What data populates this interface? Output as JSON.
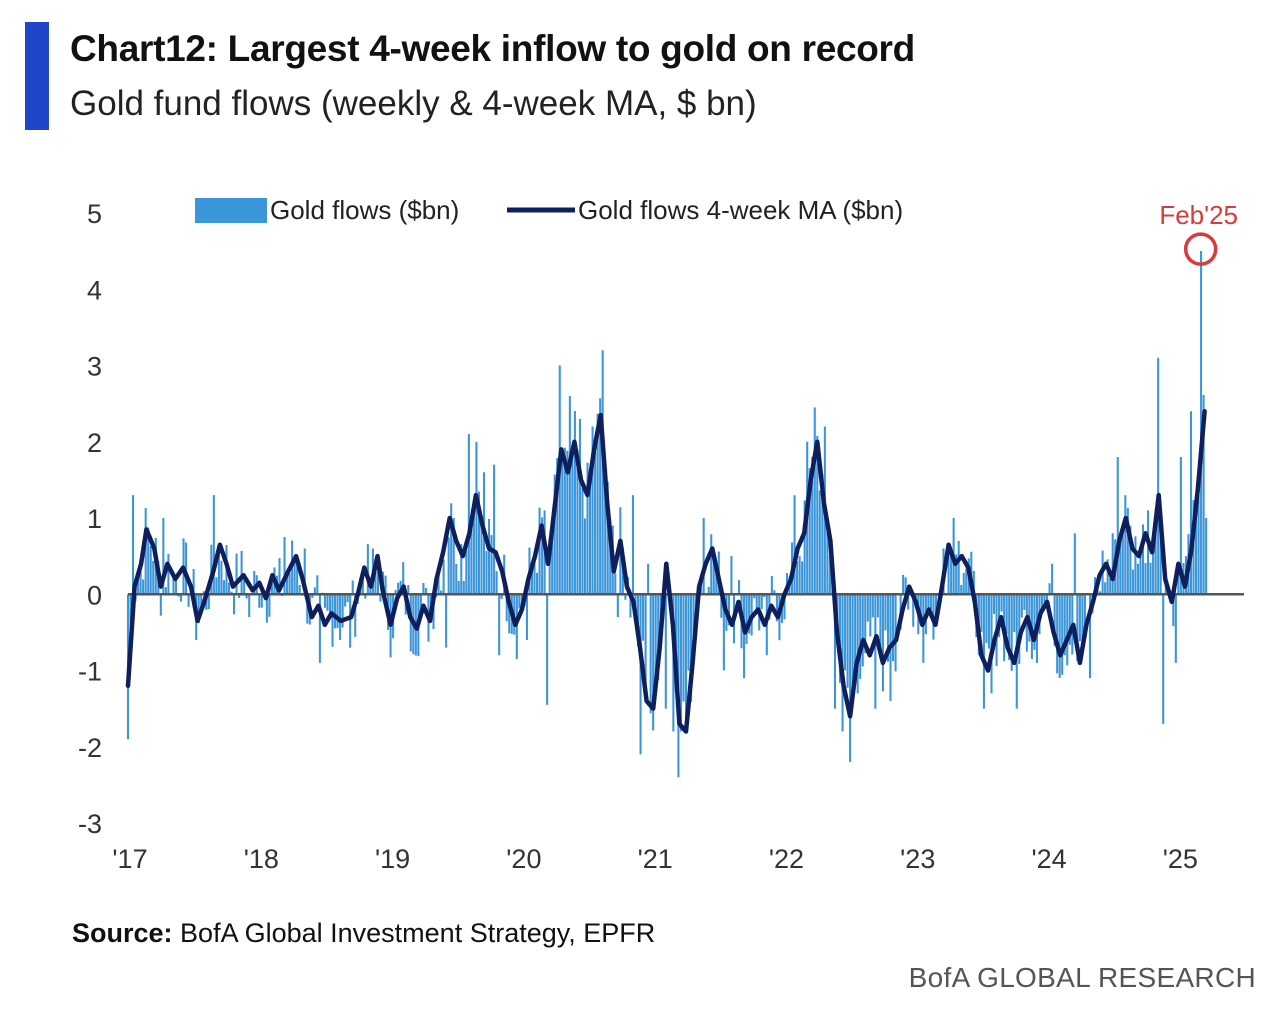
{
  "header": {
    "title": "Chart12: Largest 4-week inflow to gold on record",
    "subtitle": "Gold fund flows (weekly & 4-week MA, $ bn)"
  },
  "footer": {
    "source_label": "Source:",
    "source_text": "BofA Global Investment Strategy, EPFR",
    "brand": "BofA GLOBAL RESEARCH"
  },
  "colors": {
    "accent": "#1f46c8",
    "bars": "#3b95da",
    "ma_line": "#0f1f5c",
    "annotation": "#d93a3a",
    "zero_line": "#555555"
  },
  "chart_data": {
    "type": "bar",
    "title": "Gold fund flows (weekly & 4-week MA, $ bn)",
    "xlabel": "",
    "ylabel": "",
    "ylim": [
      -3,
      5
    ],
    "yticks": [
      5,
      4,
      3,
      2,
      1,
      0,
      -1,
      -2,
      -3
    ],
    "xlim": [
      2017.0,
      2025.5
    ],
    "xtick_values": [
      2017,
      2018,
      2019,
      2020,
      2021,
      2022,
      2023,
      2024,
      2025
    ],
    "xtick_labels": [
      "'17",
      "'18",
      "'19",
      "'20",
      "'21",
      "'22",
      "'23",
      "'24",
      "'25"
    ],
    "grid": false,
    "legend": [
      "Gold flows ($bn)",
      "Gold flows 4-week MA ($bn)"
    ],
    "legend_position": "top",
    "annotation": {
      "text": "Feb'25",
      "x": 2025.17,
      "y": 4.5
    },
    "ma_anchors": [
      [
        2017.0,
        -1.2
      ],
      [
        2017.05,
        0.1
      ],
      [
        2017.1,
        0.4
      ],
      [
        2017.14,
        0.85
      ],
      [
        2017.2,
        0.6
      ],
      [
        2017.25,
        0.1
      ],
      [
        2017.3,
        0.4
      ],
      [
        2017.36,
        0.2
      ],
      [
        2017.42,
        0.35
      ],
      [
        2017.48,
        0.1
      ],
      [
        2017.53,
        -0.35
      ],
      [
        2017.58,
        -0.1
      ],
      [
        2017.65,
        0.3
      ],
      [
        2017.7,
        0.65
      ],
      [
        2017.75,
        0.4
      ],
      [
        2017.8,
        0.1
      ],
      [
        2017.88,
        0.25
      ],
      [
        2017.95,
        0.05
      ],
      [
        2018.0,
        0.15
      ],
      [
        2018.05,
        -0.05
      ],
      [
        2018.1,
        0.25
      ],
      [
        2018.15,
        0.05
      ],
      [
        2018.22,
        0.3
      ],
      [
        2018.28,
        0.5
      ],
      [
        2018.33,
        0.2
      ],
      [
        2018.4,
        -0.3
      ],
      [
        2018.45,
        -0.15
      ],
      [
        2018.5,
        -0.4
      ],
      [
        2018.55,
        -0.25
      ],
      [
        2018.62,
        -0.35
      ],
      [
        2018.7,
        -0.3
      ],
      [
        2018.75,
        0.0
      ],
      [
        2018.8,
        0.35
      ],
      [
        2018.85,
        0.1
      ],
      [
        2018.9,
        0.5
      ],
      [
        2018.94,
        0.05
      ],
      [
        2019.0,
        -0.4
      ],
      [
        2019.05,
        -0.05
      ],
      [
        2019.1,
        0.1
      ],
      [
        2019.15,
        -0.3
      ],
      [
        2019.2,
        -0.45
      ],
      [
        2019.25,
        -0.15
      ],
      [
        2019.3,
        -0.35
      ],
      [
        2019.35,
        0.2
      ],
      [
        2019.4,
        0.55
      ],
      [
        2019.45,
        1.0
      ],
      [
        2019.5,
        0.7
      ],
      [
        2019.55,
        0.5
      ],
      [
        2019.6,
        0.8
      ],
      [
        2019.65,
        1.3
      ],
      [
        2019.7,
        0.9
      ],
      [
        2019.75,
        0.6
      ],
      [
        2019.8,
        0.55
      ],
      [
        2019.85,
        0.3
      ],
      [
        2019.9,
        -0.1
      ],
      [
        2019.95,
        -0.4
      ],
      [
        2020.0,
        -0.2
      ],
      [
        2020.05,
        0.2
      ],
      [
        2020.1,
        0.5
      ],
      [
        2020.15,
        0.9
      ],
      [
        2020.2,
        0.4
      ],
      [
        2020.25,
        1.15
      ],
      [
        2020.3,
        1.9
      ],
      [
        2020.35,
        1.6
      ],
      [
        2020.4,
        2.0
      ],
      [
        2020.45,
        1.5
      ],
      [
        2020.5,
        1.3
      ],
      [
        2020.55,
        1.9
      ],
      [
        2020.6,
        2.35
      ],
      [
        2020.65,
        1.2
      ],
      [
        2020.7,
        0.3
      ],
      [
        2020.75,
        0.7
      ],
      [
        2020.8,
        0.1
      ],
      [
        2020.85,
        -0.1
      ],
      [
        2020.9,
        -0.7
      ],
      [
        2020.95,
        -1.4
      ],
      [
        2021.0,
        -1.5
      ],
      [
        2021.05,
        -0.7
      ],
      [
        2021.1,
        0.4
      ],
      [
        2021.15,
        -0.4
      ],
      [
        2021.2,
        -1.7
      ],
      [
        2021.25,
        -1.8
      ],
      [
        2021.3,
        -0.9
      ],
      [
        2021.35,
        0.1
      ],
      [
        2021.4,
        0.4
      ],
      [
        2021.45,
        0.6
      ],
      [
        2021.5,
        0.2
      ],
      [
        2021.55,
        -0.2
      ],
      [
        2021.6,
        -0.4
      ],
      [
        2021.65,
        -0.1
      ],
      [
        2021.7,
        -0.5
      ],
      [
        2021.75,
        -0.3
      ],
      [
        2021.8,
        -0.2
      ],
      [
        2021.85,
        -0.4
      ],
      [
        2021.9,
        -0.15
      ],
      [
        2021.95,
        -0.3
      ],
      [
        2022.0,
        0.0
      ],
      [
        2022.05,
        0.2
      ],
      [
        2022.1,
        0.6
      ],
      [
        2022.15,
        0.8
      ],
      [
        2022.2,
        1.5
      ],
      [
        2022.25,
        2.0
      ],
      [
        2022.3,
        1.2
      ],
      [
        2022.35,
        0.7
      ],
      [
        2022.4,
        -0.5
      ],
      [
        2022.45,
        -1.2
      ],
      [
        2022.5,
        -1.6
      ],
      [
        2022.55,
        -0.9
      ],
      [
        2022.6,
        -0.6
      ],
      [
        2022.65,
        -0.8
      ],
      [
        2022.7,
        -0.55
      ],
      [
        2022.75,
        -0.9
      ],
      [
        2022.8,
        -0.7
      ],
      [
        2022.85,
        -0.6
      ],
      [
        2022.9,
        -0.2
      ],
      [
        2022.95,
        0.1
      ],
      [
        2023.0,
        -0.1
      ],
      [
        2023.05,
        -0.4
      ],
      [
        2023.1,
        -0.2
      ],
      [
        2023.15,
        -0.4
      ],
      [
        2023.2,
        0.1
      ],
      [
        2023.25,
        0.65
      ],
      [
        2023.3,
        0.4
      ],
      [
        2023.35,
        0.5
      ],
      [
        2023.4,
        0.35
      ],
      [
        2023.45,
        -0.1
      ],
      [
        2023.5,
        -0.8
      ],
      [
        2023.55,
        -1.0
      ],
      [
        2023.6,
        -0.6
      ],
      [
        2023.65,
        -0.3
      ],
      [
        2023.7,
        -0.7
      ],
      [
        2023.75,
        -0.9
      ],
      [
        2023.8,
        -0.5
      ],
      [
        2023.85,
        -0.3
      ],
      [
        2023.9,
        -0.6
      ],
      [
        2023.95,
        -0.25
      ],
      [
        2024.0,
        -0.1
      ],
      [
        2024.05,
        -0.5
      ],
      [
        2024.1,
        -0.8
      ],
      [
        2024.15,
        -0.6
      ],
      [
        2024.2,
        -0.4
      ],
      [
        2024.25,
        -0.9
      ],
      [
        2024.3,
        -0.4
      ],
      [
        2024.35,
        -0.1
      ],
      [
        2024.4,
        0.25
      ],
      [
        2024.45,
        0.4
      ],
      [
        2024.5,
        0.2
      ],
      [
        2024.55,
        0.7
      ],
      [
        2024.6,
        1.0
      ],
      [
        2024.65,
        0.6
      ],
      [
        2024.7,
        0.5
      ],
      [
        2024.75,
        0.8
      ],
      [
        2024.8,
        0.55
      ],
      [
        2024.85,
        1.3
      ],
      [
        2024.9,
        0.2
      ],
      [
        2024.95,
        -0.1
      ],
      [
        2025.0,
        0.4
      ],
      [
        2025.05,
        0.1
      ],
      [
        2025.1,
        0.6
      ],
      [
        2025.15,
        1.4
      ],
      [
        2025.2,
        2.4
      ]
    ],
    "bar_extremes": [
      [
        2017.0,
        -1.9
      ],
      [
        2017.03,
        1.3
      ],
      [
        2017.26,
        1.0
      ],
      [
        2017.52,
        -0.6
      ],
      [
        2017.66,
        1.3
      ],
      [
        2017.92,
        -0.3
      ],
      [
        2018.2,
        0.75
      ],
      [
        2018.35,
        0.6
      ],
      [
        2018.46,
        -0.9
      ],
      [
        2018.7,
        -0.7
      ],
      [
        2018.86,
        0.6
      ],
      [
        2019.16,
        -0.75
      ],
      [
        2019.42,
        -0.7
      ],
      [
        2019.48,
        1.0
      ],
      [
        2019.6,
        2.1
      ],
      [
        2019.66,
        2.0
      ],
      [
        2019.72,
        1.6
      ],
      [
        2019.79,
        1.7
      ],
      [
        2019.82,
        -0.8
      ],
      [
        2019.96,
        -0.85
      ],
      [
        2020.04,
        -0.6
      ],
      [
        2020.17,
        1.1
      ],
      [
        2020.2,
        -1.45
      ],
      [
        2020.28,
        3.0
      ],
      [
        2020.36,
        2.6
      ],
      [
        2020.45,
        2.3
      ],
      [
        2020.54,
        2.2
      ],
      [
        2020.61,
        3.2
      ],
      [
        2020.69,
        0.9
      ],
      [
        2020.74,
        -0.3
      ],
      [
        2020.84,
        1.3
      ],
      [
        2020.9,
        -2.1
      ],
      [
        2020.96,
        0.4
      ],
      [
        2021.1,
        -1.5
      ],
      [
        2021.16,
        -1.8
      ],
      [
        2021.2,
        -2.4
      ],
      [
        2021.26,
        -1.0
      ],
      [
        2021.39,
        1.0
      ],
      [
        2021.53,
        -1.0
      ],
      [
        2021.6,
        0.5
      ],
      [
        2021.7,
        -1.1
      ],
      [
        2021.86,
        -0.8
      ],
      [
        2022.08,
        1.3
      ],
      [
        2022.18,
        2.0
      ],
      [
        2022.24,
        2.45
      ],
      [
        2022.3,
        2.2
      ],
      [
        2022.34,
        0.5
      ],
      [
        2022.38,
        -1.5
      ],
      [
        2022.45,
        -1.8
      ],
      [
        2022.5,
        -2.2
      ],
      [
        2022.56,
        -1.3
      ],
      [
        2022.7,
        -1.5
      ],
      [
        2022.8,
        -1.4
      ],
      [
        2022.86,
        0.0
      ],
      [
        2022.95,
        -0.2
      ],
      [
        2023.05,
        -0.9
      ],
      [
        2023.21,
        0.6
      ],
      [
        2023.28,
        1.0
      ],
      [
        2023.33,
        0.7
      ],
      [
        2023.48,
        -0.8
      ],
      [
        2023.52,
        -1.5
      ],
      [
        2023.58,
        -1.3
      ],
      [
        2023.76,
        -1.5
      ],
      [
        2023.92,
        -0.9
      ],
      [
        2024.03,
        0.4
      ],
      [
        2024.14,
        -0.8
      ],
      [
        2024.22,
        0.8
      ],
      [
        2024.33,
        -1.1
      ],
      [
        2024.5,
        0.8
      ],
      [
        2024.54,
        1.8
      ],
      [
        2024.6,
        1.3
      ],
      [
        2024.7,
        0.4
      ],
      [
        2024.76,
        1.1
      ],
      [
        2024.8,
        0.8
      ],
      [
        2024.84,
        3.1
      ],
      [
        2024.88,
        -1.7
      ],
      [
        2024.98,
        -0.9
      ],
      [
        2025.02,
        1.8
      ],
      [
        2025.06,
        0.5
      ],
      [
        2025.1,
        2.4
      ],
      [
        2025.14,
        1.2
      ],
      [
        2025.17,
        4.5
      ],
      [
        2025.22,
        1.0
      ]
    ]
  }
}
